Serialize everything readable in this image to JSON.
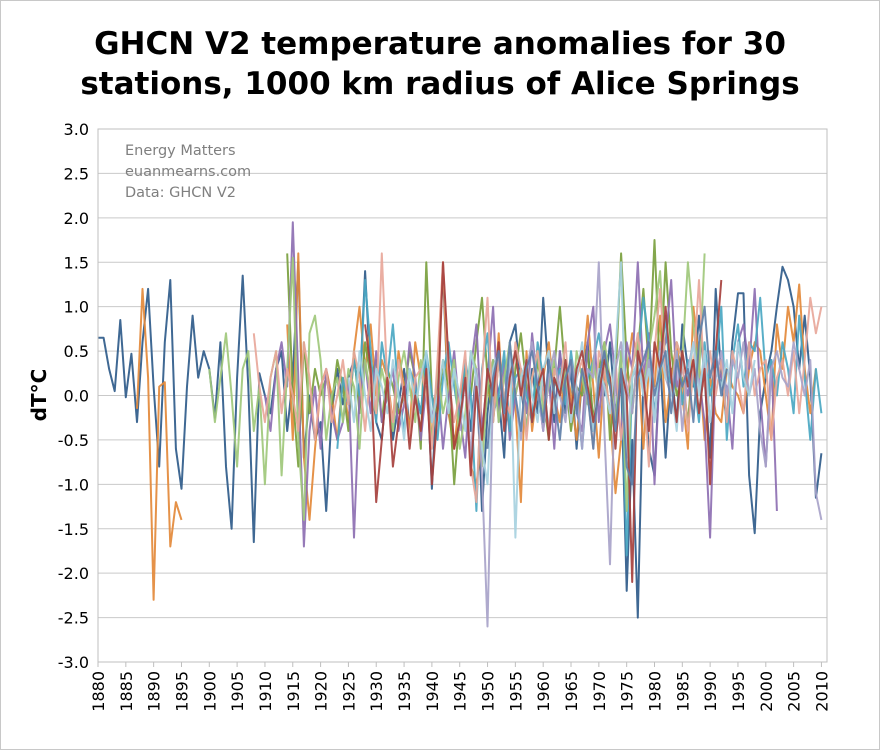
{
  "chart_data": {
    "type": "line",
    "title_lines": [
      "GHCN V2 temperature anomalies for 30",
      "stations, 1000 km radius of Alice Springs"
    ],
    "xlabel": "",
    "ylabel": "dT°C",
    "xlim": [
      1880,
      2011
    ],
    "ylim": [
      -3.0,
      3.0
    ],
    "y_ticks": [
      "3.0",
      "2.5",
      "2.0",
      "1.5",
      "1.0",
      "0.5",
      "0.0",
      "-0.5",
      "-1.0",
      "-1.5",
      "-2.0",
      "-2.5",
      "-3.0"
    ],
    "x_ticks": [
      "1880",
      "1885",
      "1890",
      "1895",
      "1900",
      "1905",
      "1910",
      "1915",
      "1920",
      "1925",
      "1930",
      "1935",
      "1940",
      "1945",
      "1950",
      "1955",
      "1960",
      "1965",
      "1970",
      "1975",
      "1980",
      "1985",
      "1990",
      "1995",
      "2000",
      "2005",
      "2010"
    ],
    "grid": "horizontal",
    "watermark": [
      "Energy Matters",
      "euanmearns.com",
      "Data: GHCN V2"
    ],
    "series": [
      {
        "color": "#2f5b8a",
        "start": 1880,
        "values": [
          0.65,
          0.65,
          0.3,
          0.05,
          0.85,
          -0.02,
          0.47,
          -0.3,
          0.6,
          1.2,
          0.1,
          -0.8,
          0.6,
          1.3,
          -0.6,
          -1.05,
          0.1,
          0.9,
          0.2,
          0.5,
          0.3,
          -0.25,
          0.6,
          -0.8,
          -1.5,
          0.2,
          1.35,
          0.1,
          -1.65,
          0.25,
          0.0,
          -0.2,
          0.3,
          0.5,
          -0.4,
          0.2,
          1.5,
          -0.7,
          0.0,
          -0.5,
          -0.3,
          -1.3,
          -0.2,
          0.3,
          -0.1,
          0.2,
          0.4,
          0.0,
          1.4,
          0.2,
          -0.3,
          -0.5,
          0.2,
          -0.5,
          -0.1,
          0.3,
          -0.4,
          0.1,
          -0.2,
          0.4,
          -1.05,
          0.2,
          1.4,
          -0.2,
          -0.5,
          -0.3,
          0.2,
          -0.4,
          0.3,
          -1.3,
          -0.2,
          0.4,
          0.0,
          -0.7,
          0.6,
          0.8,
          0.1,
          -0.4,
          0.3,
          -0.2,
          1.1,
          0.2,
          -0.3,
          0.5,
          -0.2,
          0.3,
          -0.6,
          0.2,
          0.6,
          -0.4,
          0.3,
          0.0,
          0.6,
          -0.2,
          0.2,
          -2.2,
          -0.5,
          -2.5,
          0.2,
          -0.6,
          -0.9,
          0.4,
          -0.7,
          0.3,
          -0.3,
          0.8,
          0.3,
          0.1,
          0.9,
          0.2,
          -0.7,
          1.2,
          0.2,
          -0.3,
          0.6,
          1.15,
          1.15,
          -0.9,
          -1.55,
          -0.2,
          0.2,
          0.5,
          1.0,
          1.45,
          1.3,
          1.0,
          0.3,
          0.9,
          0.2,
          -1.15,
          -0.65
        ]
      },
      {
        "color": "#e3893a",
        "start": 1887,
        "values": [
          -0.15,
          1.2,
          0.2,
          -2.3,
          0.1,
          0.15,
          -1.7,
          -1.2,
          -1.4
        ]
      },
      {
        "color": "#e3893a",
        "start": 1914,
        "values": [
          0.8,
          -0.5,
          1.6,
          -0.7,
          -1.4,
          -0.6,
          0.1,
          0.3,
          0.0,
          -0.5,
          0.2,
          -0.3,
          0.5,
          1.0,
          0.3,
          0.8,
          0.0,
          0.4,
          0.2,
          -0.3,
          0.5,
          0.1,
          -0.4,
          0.6,
          0.2,
          0.3,
          -0.5,
          0.2,
          1.5,
          -0.2,
          -0.6,
          0.0,
          0.3,
          -0.8,
          -1.0,
          -0.5,
          0.1,
          -0.2,
          0.7,
          -0.3,
          0.2,
          -0.1,
          -1.2,
          0.5,
          -0.4,
          0.1,
          0.2,
          0.6,
          0.0,
          -0.3,
          0.4,
          0.0,
          -0.5,
          0.2,
          0.9,
          0.1,
          -0.7,
          0.3,
          -0.2,
          -1.1,
          -0.5,
          0.2,
          0.7,
          0.4,
          -0.6,
          0.3,
          0.1,
          0.9,
          -0.3,
          0.2,
          0.6,
          0.0,
          -0.6,
          1.0,
          0.4,
          -0.5,
          0.2,
          -0.2,
          -0.3,
          0.3,
          0.1,
          0.0,
          -0.2,
          0.3,
          0.6,
          0.5,
          0.0,
          -0.5,
          0.8,
          0.3,
          1.0,
          0.6,
          1.25,
          0.3,
          -0.2,
          0.3
        ]
      },
      {
        "color": "#7a9f3e",
        "start": 1914,
        "values": [
          1.6,
          0.0,
          -0.8,
          0.6,
          -0.2,
          0.3,
          0.0,
          0.2,
          -0.1,
          0.4,
          0.1,
          -0.4,
          0.5,
          -0.2,
          0.6,
          0.2,
          0.4,
          -0.3,
          0.3,
          0.1,
          -0.2,
          0.0,
          0.5,
          0.2,
          -0.6,
          1.5,
          0.0,
          -0.2,
          0.4,
          0.1,
          -1.0,
          -0.2,
          0.3,
          0.0,
          0.6,
          1.1,
          0.2,
          -0.3,
          0.4,
          0.0,
          -0.4,
          0.3,
          0.7,
          0.1,
          -0.3,
          0.4,
          0.0,
          -0.5,
          0.3,
          1.0,
          0.2,
          -0.4,
          0.1,
          0.0,
          0.5,
          -0.3,
          0.3,
          0.6,
          -0.5,
          0.2,
          1.6,
          0.4,
          -0.2,
          0.5,
          1.2,
          0.3,
          1.75,
          0.2,
          1.5,
          0.5,
          0.0,
          0.2,
          -0.3,
          0.4
        ]
      },
      {
        "color": "#8d6fb2",
        "start": 1910,
        "values": [
          0.0,
          -0.4,
          0.3,
          0.6,
          0.1,
          1.95,
          0.2,
          -1.7,
          -0.4,
          0.1,
          -0.6,
          0.3,
          -0.2,
          -0.5,
          -0.3,
          0.2,
          -1.6,
          0.0,
          0.4,
          -0.2,
          0.5,
          -0.3,
          0.0,
          0.3,
          -0.4,
          -0.1,
          0.6,
          0.2,
          -0.5,
          0.1,
          -0.3,
          0.2,
          -0.6,
          0.0,
          0.5,
          -0.2,
          -0.7,
          0.3,
          0.8,
          -0.4,
          0.2,
          1.0,
          -0.3,
          0.4,
          -0.5,
          0.0,
          0.3,
          -0.2,
          0.7,
          0.1,
          -0.4,
          0.2,
          -0.6,
          0.5,
          0.0,
          0.4,
          -0.2,
          -0.4,
          0.6,
          1.0,
          -0.3,
          0.5,
          0.8,
          0.2,
          -0.5,
          0.6,
          0.3,
          1.5,
          0.2,
          0.7,
          -1.0,
          0.4,
          0.6,
          1.3,
          0.1,
          0.3,
          0.0,
          0.4,
          0.2,
          -0.3,
          -1.6,
          0.4,
          0.2,
          0.1,
          -0.6,
          0.6,
          0.8,
          0.3,
          1.2,
          0.0,
          -0.8,
          0.4,
          -1.3
        ]
      },
      {
        "color": "#4aa7c2",
        "start": 1923,
        "values": [
          -0.6,
          0.2,
          -0.1,
          0.4,
          0.0,
          1.3,
          0.5,
          -0.3,
          0.6,
          0.2,
          0.8,
          0.0,
          -0.4,
          0.3,
          0.1,
          -0.2,
          0.5,
          0.0,
          -0.5,
          0.2,
          0.6,
          0.1,
          -0.3,
          0.4,
          0.0,
          -1.3,
          0.3,
          0.7,
          -0.2,
          0.0,
          0.5,
          -0.4,
          0.2,
          0.3,
          0.0,
          -0.3,
          0.6,
          0.2,
          -0.4,
          0.1,
          0.3,
          -0.1,
          0.5,
          0.0,
          -0.6,
          0.2,
          0.4,
          0.7,
          0.3,
          0.1,
          -0.3,
          0.5,
          -1.8,
          0.2,
          0.4,
          1.1,
          0.6,
          -0.2,
          0.3,
          0.9,
          0.0,
          0.5,
          -0.1,
          0.4,
          0.2,
          -0.3,
          0.6,
          0.0,
          0.3,
          1.0,
          -0.5,
          0.4,
          0.8,
          0.1,
          0.6,
          0.5,
          1.1,
          0.2,
          0.4,
          0.0,
          0.6,
          0.3,
          -0.2,
          0.9,
          0.2,
          -0.5,
          0.3,
          -0.2
        ]
      },
      {
        "color": "#9fc87b",
        "start": 1900,
        "values": [
          0.3,
          -0.3,
          0.2,
          0.7,
          0.0,
          -0.8,
          0.3,
          0.5,
          -0.4,
          0.1,
          -1.0,
          0.2,
          0.5,
          -0.9,
          0.3,
          1.55,
          -0.5,
          -1.4,
          0.7,
          0.9,
          0.4,
          -0.5,
          0.0,
          0.2,
          -0.3,
          0.3,
          0.1,
          -0.6,
          0.4,
          0.0,
          -0.2,
          0.3,
          0.0,
          -0.4,
          0.2,
          0.5,
          0.1,
          -0.3,
          0.4,
          0.0,
          -0.5,
          0.3,
          -0.2,
          0.1,
          0.4,
          -0.6,
          -0.2,
          0.5,
          0.3,
          -0.8,
          0.1,
          0.4,
          -0.3,
          0.2,
          0.6,
          0.0,
          0.3,
          -0.4,
          0.2,
          0.5,
          -0.2,
          0.1,
          0.4,
          0.0,
          0.3,
          -0.3,
          0.5,
          0.2,
          -0.1,
          0.4,
          0.0,
          0.6,
          0.2,
          -0.3,
          0.5,
          -1.3,
          0.3,
          0.6,
          0.1,
          0.5,
          0.9,
          1.4,
          0.3,
          0.0,
          0.6,
          0.4,
          1.5,
          0.8,
          0.2,
          1.6
        ]
      },
      {
        "color": "#e8a79a",
        "start": 1908,
        "values": [
          0.7,
          0.1,
          -0.3,
          0.2,
          0.5,
          -0.2,
          0.3,
          0.0,
          -0.4,
          0.6,
          0.2,
          -0.5,
          0.1,
          0.3,
          -0.3,
          0.0,
          0.4,
          -0.1,
          0.5,
          0.2,
          -0.4,
          0.3,
          -0.2,
          1.6,
          0.1,
          -0.3,
          0.4,
          0.0,
          -0.5,
          0.2,
          0.3,
          0.0,
          -0.6,
          0.4,
          1.5,
          0.2,
          -0.3,
          0.0,
          0.5,
          -0.8,
          -1.2,
          0.2,
          1.1,
          -0.3,
          0.4,
          0.0,
          -0.2,
          0.6,
          0.3,
          -0.5,
          0.2,
          0.5,
          0.0,
          -0.4,
          0.3,
          0.1,
          0.6,
          -0.3,
          0.2,
          0.4,
          0.0,
          -0.6,
          0.5,
          0.3,
          -0.2,
          0.4,
          -0.5,
          0.0,
          0.3,
          0.7,
          0.2,
          -0.8,
          0.5,
          1.2,
          0.3,
          0.0,
          0.6,
          0.4,
          -0.4,
          0.3,
          1.3,
          0.1,
          0.5,
          0.0,
          0.4,
          -0.3,
          0.5,
          0.2,
          -0.2,
          0.6,
          0.0,
          0.3,
          0.4,
          -0.5,
          0.2,
          0.4,
          0.0,
          0.5,
          -0.2,
          0.4,
          1.1,
          0.7,
          1.0
        ]
      },
      {
        "color": "#a8a3c9",
        "start": 1945,
        "values": [
          -0.4,
          0.2,
          -0.7,
          0.3,
          -0.9,
          -2.6,
          0.1,
          0.5,
          -0.3,
          0.4,
          0.0,
          -0.5,
          0.3,
          0.6,
          0.1,
          -0.4,
          0.2,
          0.5,
          0.0,
          -0.3,
          0.4,
          0.1,
          -0.6,
          0.3,
          0.2,
          1.5,
          -0.4,
          -1.9,
          0.3,
          0.6,
          0.1,
          -0.2,
          0.5,
          0.0,
          0.4,
          -0.3,
          0.6,
          0.2,
          0.0,
          0.5,
          -0.4,
          0.3,
          0.6,
          0.1,
          0.4,
          -0.3,
          0.2,
          0.5,
          0.0,
          0.4,
          0.2,
          0.6,
          0.0,
          0.3,
          -0.4,
          -0.8,
          0.3,
          0.5,
          0.2,
          0.1,
          0.6,
          0.3,
          0.0,
          0.4,
          -1.1,
          -1.4
        ]
      },
      {
        "color": "#a7d1df",
        "start": 1925,
        "values": [
          0.2,
          -0.3,
          0.5,
          0.0,
          -0.4,
          0.3,
          0.1,
          -0.2,
          0.4,
          0.0,
          -0.5,
          0.3,
          -0.1,
          0.2,
          0.5,
          -0.3,
          0.0,
          0.4,
          -0.2,
          0.3,
          0.0,
          -0.4,
          0.5,
          0.2,
          -0.6,
          -1.0,
          0.3,
          0.5,
          -0.2,
          0.6,
          -1.6,
          0.2,
          0.4,
          0.0,
          -0.3,
          0.3,
          0.5,
          -0.2,
          0.1,
          0.4,
          -0.3,
          0.2,
          0.6,
          0.0,
          -0.4,
          0.3,
          0.1,
          -0.2,
          0.5,
          1.5,
          -0.7,
          0.2,
          0.4,
          0.0,
          0.3,
          -0.3,
          0.5,
          0.2,
          0.1,
          -0.4,
          0.4,
          0.2,
          0.6,
          0.0,
          0.5,
          -0.3,
          0.3,
          0.1,
          0.4,
          -0.2,
          0.6,
          0.2,
          0.0,
          0.4
        ]
      },
      {
        "color": "#a6403d",
        "start": 1928,
        "values": [
          0.8,
          0.3,
          -1.2,
          -0.5,
          0.2,
          -0.8,
          -0.3,
          0.1,
          -0.6,
          0.0,
          -0.4,
          0.3,
          -1.0,
          -0.2,
          1.5,
          0.4,
          -0.6,
          -0.3,
          0.2,
          -0.9,
          0.1,
          -0.5,
          0.3,
          0.0,
          0.6,
          -0.4,
          0.2,
          0.5,
          0.0,
          0.4,
          -0.3,
          0.1,
          0.3,
          -0.5,
          0.2,
          0.0,
          0.4,
          -0.2,
          0.3,
          0.5,
          0.1,
          -0.3,
          0.0,
          0.4,
          0.2,
          -0.6,
          0.3,
          0.0,
          -2.1,
          0.5,
          0.2,
          -0.4,
          0.6,
          0.3,
          1.0,
          0.2,
          -0.3,
          0.5,
          0.1,
          0.4,
          -0.2,
          0.3,
          -1.0,
          0.5,
          1.3
        ]
      },
      {
        "color": "#5f7fa8",
        "start": 1950,
        "values": [
          -0.6,
          0.2,
          0.5,
          -0.2,
          0.6,
          0.0,
          -0.4,
          0.3,
          0.5,
          0.1,
          -0.3,
          0.4,
          0.0,
          -0.5,
          0.2,
          0.4,
          -0.2,
          0.3,
          0.0,
          -0.6,
          0.2,
          0.5,
          0.1,
          -0.4,
          0.3,
          -0.8,
          -1.0,
          0.2,
          0.4,
          0.6,
          0.0,
          0.3,
          0.5,
          -0.2,
          0.4,
          0.1,
          0.3,
          -0.3,
          0.6,
          1.0,
          0.2,
          0.5,
          0.0,
          0.3
        ]
      }
    ]
  }
}
